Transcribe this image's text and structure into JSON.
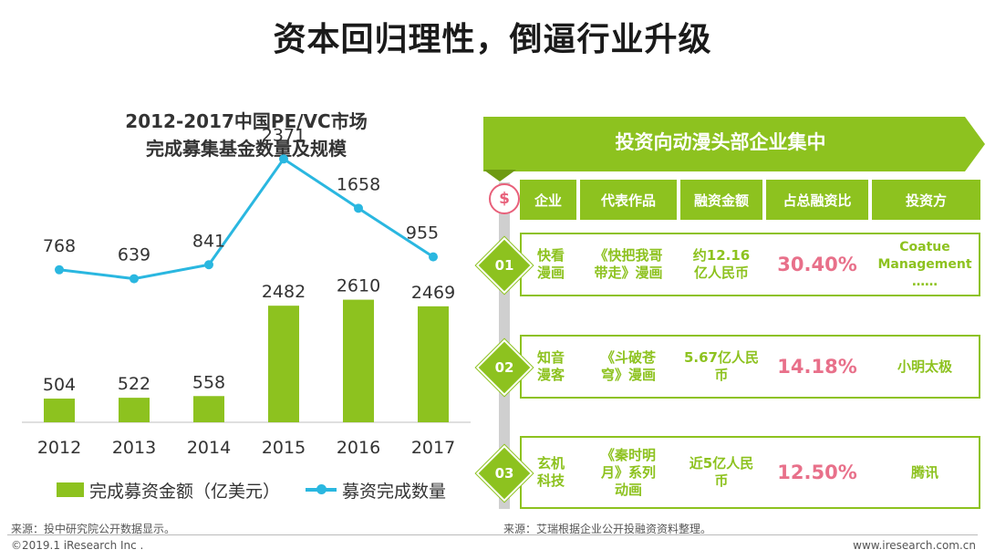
{
  "page_title": "资本回归理性，倒逼行业升级",
  "chart_data": {
    "type": "bar+line",
    "title": [
      "2012-2017中国PE/VC市场",
      "完成募集基金数量及规模"
    ],
    "categories": [
      "2012",
      "2013",
      "2014",
      "2015",
      "2016",
      "2017"
    ],
    "series": [
      {
        "name": "完成募资金额（亿美元）",
        "type": "bar",
        "color": "#8dc21f",
        "values": [
          504,
          522,
          558,
          2482,
          2610,
          2469
        ]
      },
      {
        "name": "募资完成数量",
        "type": "line",
        "color": "#2ab7e0",
        "values": [
          768,
          639,
          841,
          2371,
          1658,
          955
        ]
      }
    ],
    "grid": false,
    "legend_position": "bottom"
  },
  "source_left": "来源：投中研究院公开数据显示。",
  "panel": {
    "title": "投资向动漫头部企业集中",
    "icon": "$",
    "headers": [
      "企业",
      "代表作品",
      "融资金额",
      "占总融资比",
      "投资方"
    ],
    "rows": [
      {
        "num": "01",
        "company": [
          "快看",
          "漫画"
        ],
        "work": [
          "《快把我哥",
          "带走》漫画"
        ],
        "amount": [
          "约12.16",
          "亿人民币"
        ],
        "ratio": "30.40%",
        "investor": [
          "Coatue",
          "Management",
          "……"
        ]
      },
      {
        "num": "02",
        "company": [
          "知音",
          "漫客"
        ],
        "work": [
          "《斗破苍",
          "穹》漫画"
        ],
        "amount": [
          "5.67亿人民",
          "币"
        ],
        "ratio": "14.18%",
        "investor": [
          "小明太极"
        ]
      },
      {
        "num": "03",
        "company": [
          "玄机",
          "科技"
        ],
        "work": [
          "《秦时明",
          "月》系列",
          "动画"
        ],
        "amount": [
          "近5亿人民",
          "币"
        ],
        "ratio": "12.50%",
        "investor": [
          "腾讯"
        ]
      }
    ]
  },
  "source_right": "来源：艾瑞根据企业公开投融资资料整理。",
  "footer_left": "©2019.1 iResearch Inc .",
  "footer_right": "www.iresearch.com.cn",
  "colors": {
    "accent_green": "#8dc21f",
    "line_blue": "#2ab7e0",
    "ratio_pink": "#e8708a"
  }
}
